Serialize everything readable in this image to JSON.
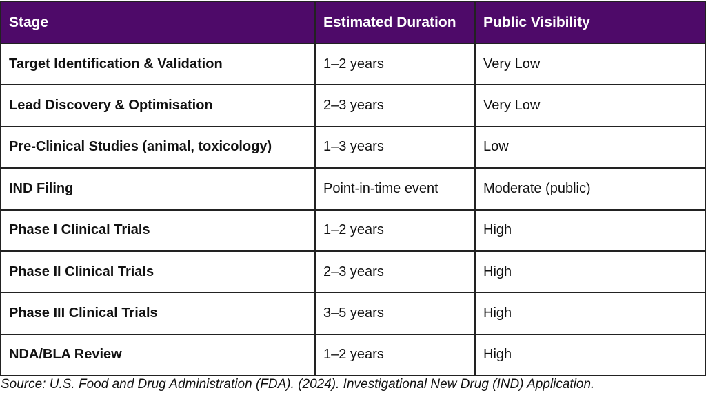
{
  "table": {
    "headers": [
      "Stage",
      "Estimated Duration",
      "Public Visibility"
    ],
    "rows": [
      {
        "stage": "Target Identification & Validation",
        "duration": "1–2 years",
        "visibility": "Very Low"
      },
      {
        "stage": "Lead Discovery & Optimisation",
        "duration": "2–3 years",
        "visibility": "Very Low"
      },
      {
        "stage": "Pre-Clinical Studies (animal, toxicology)",
        "duration": "1–3 years",
        "visibility": "Low"
      },
      {
        "stage": "IND Filing",
        "duration": "Point-in-time event",
        "visibility": "Moderate (public)"
      },
      {
        "stage": "Phase I Clinical Trials",
        "duration": "1–2 years",
        "visibility": "High"
      },
      {
        "stage": "Phase II Clinical Trials",
        "duration": "2–3 years",
        "visibility": "High"
      },
      {
        "stage": "Phase III Clinical Trials",
        "duration": "3–5 years",
        "visibility": "High"
      },
      {
        "stage": "NDA/BLA Review",
        "duration": "1–2 years",
        "visibility": "High"
      }
    ]
  },
  "source": "Source: U.S. Food and Drug Administration (FDA). (2024). Investigational New Drug (IND) Application.",
  "colors": {
    "header_background": "#4e0a69",
    "header_text": "#ffffff",
    "border": "#222222"
  }
}
